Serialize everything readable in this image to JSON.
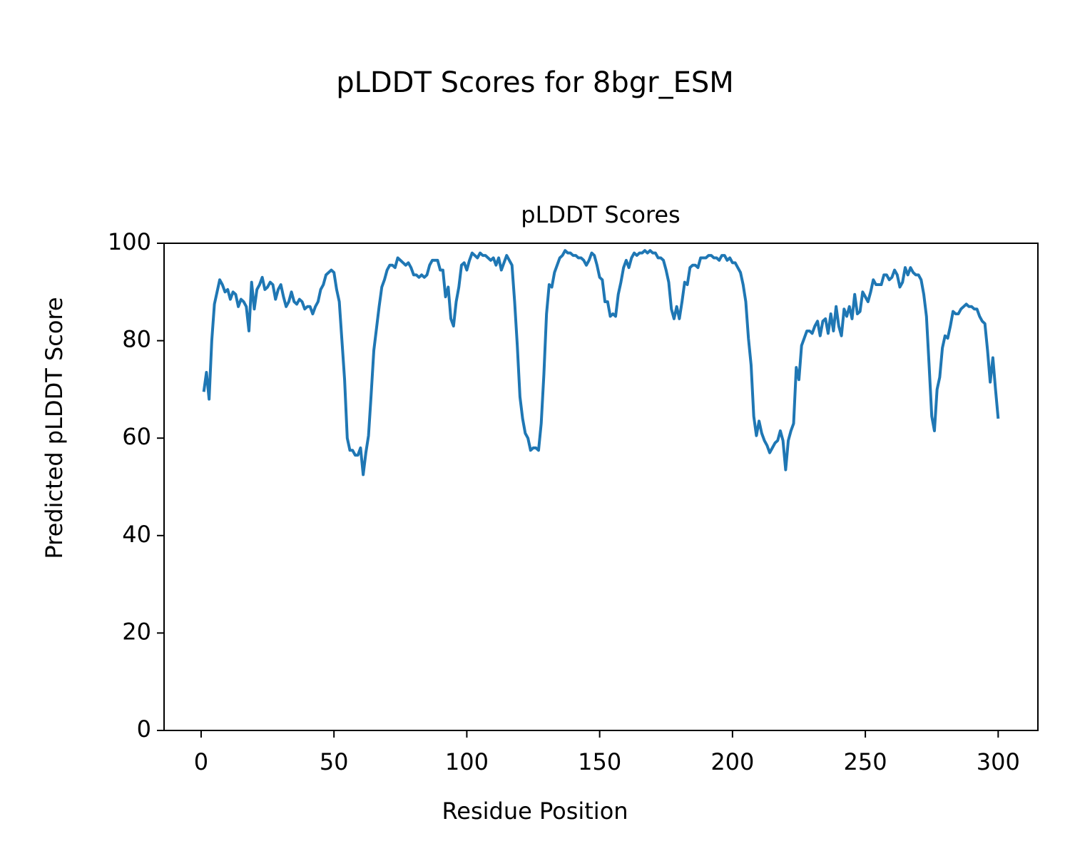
{
  "chart_data": {
    "type": "line",
    "suptitle": "pLDDT Scores for 8bgr_ESM",
    "title": "pLDDT Scores",
    "xlabel": "Residue Position",
    "ylabel": "Predicted pLDDT Score",
    "color": "#1f77b4",
    "grid": false,
    "xlim": [
      -13.95,
      314.95
    ],
    "xticks": [
      0,
      50,
      100,
      150,
      200,
      250,
      300
    ],
    "ylim": [
      0,
      100
    ],
    "yticks": [
      0,
      20,
      40,
      60,
      80,
      100
    ],
    "x": [
      1,
      2,
      3,
      4,
      5,
      6,
      7,
      8,
      9,
      10,
      11,
      12,
      13,
      14,
      15,
      16,
      17,
      18,
      19,
      20,
      21,
      22,
      23,
      24,
      25,
      26,
      27,
      28,
      29,
      30,
      31,
      32,
      33,
      34,
      35,
      36,
      37,
      38,
      39,
      40,
      41,
      42,
      43,
      44,
      45,
      46,
      47,
      48,
      49,
      50,
      51,
      52,
      53,
      54,
      55,
      56,
      57,
      58,
      59,
      60,
      61,
      62,
      63,
      64,
      65,
      66,
      67,
      68,
      69,
      70,
      71,
      72,
      73,
      74,
      75,
      76,
      77,
      78,
      79,
      80,
      81,
      82,
      83,
      84,
      85,
      86,
      87,
      88,
      89,
      90,
      91,
      92,
      93,
      94,
      95,
      96,
      97,
      98,
      99,
      100,
      101,
      102,
      103,
      104,
      105,
      106,
      107,
      108,
      109,
      110,
      111,
      112,
      113,
      114,
      115,
      116,
      117,
      118,
      119,
      120,
      121,
      122,
      123,
      124,
      125,
      126,
      127,
      128,
      129,
      130,
      131,
      132,
      133,
      134,
      135,
      136,
      137,
      138,
      139,
      140,
      141,
      142,
      143,
      144,
      145,
      146,
      147,
      148,
      149,
      150,
      151,
      152,
      153,
      154,
      155,
      156,
      157,
      158,
      159,
      160,
      161,
      162,
      163,
      164,
      165,
      166,
      167,
      168,
      169,
      170,
      171,
      172,
      173,
      174,
      175,
      176,
      177,
      178,
      179,
      180,
      181,
      182,
      183,
      184,
      185,
      186,
      187,
      188,
      189,
      190,
      191,
      192,
      193,
      194,
      195,
      196,
      197,
      198,
      199,
      200,
      201,
      202,
      203,
      204,
      205,
      206,
      207,
      208,
      209,
      210,
      211,
      212,
      213,
      214,
      215,
      216,
      217,
      218,
      219,
      220,
      221,
      222,
      223,
      224,
      225,
      226,
      227,
      228,
      229,
      230,
      231,
      232,
      233,
      234,
      235,
      236,
      237,
      238,
      239,
      240,
      241,
      242,
      243,
      244,
      245,
      246,
      247,
      248,
      249,
      250,
      251,
      252,
      253,
      254,
      255,
      256,
      257,
      258,
      259,
      260,
      261,
      262,
      263,
      264,
      265,
      266,
      267,
      268,
      269,
      270,
      271,
      272,
      273,
      274,
      275,
      276,
      277,
      278,
      279,
      280,
      281,
      282,
      283,
      284,
      285,
      286,
      287,
      288,
      289,
      290,
      291,
      292,
      293,
      294,
      295,
      296,
      297,
      298,
      299,
      300
    ],
    "values": [
      69.5,
      73.5,
      68,
      80,
      87.5,
      90,
      92.5,
      91.5,
      90,
      90.5,
      88.5,
      90,
      89.5,
      87,
      88.5,
      88,
      87,
      82,
      92,
      86.5,
      90.5,
      91.5,
      93,
      90.5,
      91,
      92,
      91.5,
      88.5,
      90.5,
      91.5,
      89,
      87,
      88,
      90,
      88,
      87.5,
      88.5,
      88,
      86.5,
      87,
      87,
      85.5,
      87,
      88,
      90.5,
      91.5,
      93.5,
      94,
      94.5,
      94,
      90.5,
      88,
      80,
      72,
      60,
      57.5,
      57.5,
      56.5,
      56.5,
      58,
      52.5,
      57,
      60.5,
      69,
      78,
      82.5,
      87,
      91,
      92.5,
      94.5,
      95.5,
      95.5,
      95,
      97,
      96.5,
      96,
      95.5,
      96,
      95,
      93.5,
      93.5,
      93,
      93.5,
      93,
      93.5,
      95.5,
      96.5,
      96.5,
      96.5,
      94.5,
      94.5,
      89,
      91,
      84.5,
      83,
      88,
      91,
      95.5,
      96,
      94.5,
      96.5,
      98,
      97.5,
      97,
      98,
      97.5,
      97.5,
      97,
      96.5,
      97,
      95.5,
      97,
      94.5,
      96,
      97.5,
      96.5,
      95.5,
      88,
      79,
      68.5,
      64,
      61,
      60,
      57.5,
      58,
      58,
      57.5,
      63,
      73,
      85.5,
      91.5,
      91,
      94,
      95.5,
      97,
      97.5,
      98.5,
      98,
      98,
      97.5,
      97.5,
      97,
      97,
      96.5,
      95.5,
      96.5,
      98,
      97.5,
      95.5,
      93,
      92.5,
      88,
      88,
      85,
      85.5,
      85,
      89.5,
      92,
      95,
      96.5,
      95,
      97,
      98,
      97.5,
      98,
      98,
      98.5,
      98,
      98.5,
      98,
      98,
      97,
      97,
      96.5,
      94.5,
      92,
      86.5,
      84.5,
      87,
      84.5,
      88,
      92,
      91.5,
      95,
      95.5,
      95.5,
      95,
      97,
      97,
      97,
      97.5,
      97.5,
      97,
      97,
      96.5,
      97.5,
      97.5,
      96.5,
      97,
      96,
      96,
      95,
      94,
      91.5,
      88,
      80.5,
      75,
      64.5,
      60.5,
      63.5,
      61,
      59.5,
      58.5,
      57,
      58,
      59,
      59.5,
      61.5,
      59.5,
      53.5,
      59.5,
      61.5,
      63,
      74.5,
      72,
      79,
      80.5,
      82,
      82,
      81.5,
      83,
      84,
      81,
      84,
      84.5,
      81.5,
      85.5,
      82,
      87,
      83,
      81,
      86.5,
      85,
      87,
      84.5,
      89.5,
      85.5,
      86,
      90,
      89,
      88,
      90,
      92.5,
      91.5,
      91.5,
      91.5,
      93.5,
      93.5,
      92.5,
      93,
      94.5,
      93.5,
      91,
      92,
      95,
      93.5,
      95,
      94,
      93.5,
      93.5,
      92.5,
      89.5,
      85,
      75,
      64.5,
      61.5,
      70,
      72.5,
      78.5,
      81,
      80.5,
      83,
      86,
      85.5,
      85.5,
      86.5,
      87,
      87.5,
      87,
      87,
      86.5,
      86.5,
      85,
      84,
      83.5,
      78,
      71.5,
      76.5,
      70,
      64
    ]
  }
}
